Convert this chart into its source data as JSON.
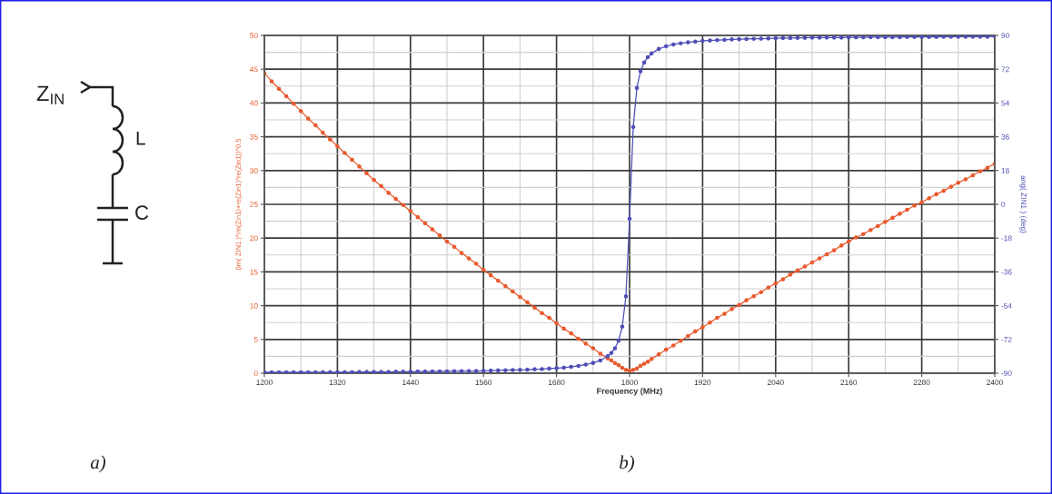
{
  "chart_data": {
    "type": "line",
    "xlabel": "Frequency (MHz)",
    "ylabel": "(im( ZIN1 )*im(Zin1)+re(Zin1)*re(Zin1))^0.5",
    "y2label": "ang( ZIN1 ) (deg)",
    "annotations": [
      "Z$_{IN}$",
      "L",
      "C",
      "a)",
      "b)"
    ],
    "x": [
      1200,
      1212,
      1224,
      1236,
      1248,
      1260,
      1272,
      1284,
      1296,
      1308,
      1320,
      1332,
      1344,
      1356,
      1368,
      1380,
      1392,
      1404,
      1416,
      1428,
      1440,
      1452,
      1464,
      1476,
      1488,
      1500,
      1512,
      1524,
      1536,
      1548,
      1560,
      1572,
      1584,
      1596,
      1608,
      1620,
      1632,
      1644,
      1656,
      1668,
      1680,
      1692,
      1704,
      1716,
      1728,
      1740,
      1752,
      1764,
      1770,
      1776,
      1782,
      1788,
      1794,
      1800,
      1806,
      1812,
      1818,
      1824,
      1830,
      1836,
      1848,
      1860,
      1872,
      1884,
      1896,
      1908,
      1920,
      1932,
      1944,
      1956,
      1968,
      1980,
      1992,
      2004,
      2016,
      2028,
      2040,
      2052,
      2064,
      2076,
      2088,
      2100,
      2112,
      2124,
      2136,
      2148,
      2160,
      2172,
      2184,
      2196,
      2208,
      2220,
      2232,
      2244,
      2256,
      2268,
      2280,
      2292,
      2304,
      2316,
      2328,
      2340,
      2352,
      2364,
      2376,
      2388,
      2400
    ],
    "series": [
      {
        "color": "#e85a2e",
        "values": [
          44.4,
          43.2,
          42.1,
          41,
          39.9,
          38.8,
          37.7,
          36.7,
          35.6,
          34.6,
          33.6,
          32.6,
          31.6,
          30.6,
          29.6,
          28.6,
          27.7,
          26.7,
          25.8,
          24.9,
          24,
          23.1,
          22.2,
          21.3,
          20.4,
          19.5,
          18.7,
          17.8,
          17,
          16.2,
          15.3,
          14.5,
          13.7,
          12.9,
          12.1,
          11.3,
          10.5,
          9.7,
          8.9,
          8.2,
          7.4,
          6.6,
          5.9,
          5.1,
          4.4,
          3.7,
          2.9,
          2.2,
          1.9,
          1.5,
          1.2,
          0.8,
          0.5,
          0.4,
          0.5,
          0.7,
          1.1,
          1.4,
          1.7,
          2.1,
          2.8,
          3.5,
          4.1,
          4.8,
          5.5,
          6.2,
          6.8,
          7.5,
          8.2,
          8.8,
          9.5,
          10.1,
          10.8,
          11.4,
          12,
          12.7,
          13.3,
          13.9,
          14.6,
          15.2,
          15.8,
          16.4,
          17,
          17.6,
          18.2,
          18.9,
          19.5,
          20.1,
          20.6,
          21.2,
          21.8,
          22.4,
          23,
          23.6,
          24.2,
          24.8,
          25.3,
          25.9,
          26.5,
          27,
          27.6,
          28.2,
          28.7,
          29.3,
          29.9,
          30.4,
          31
        ]
      },
      {
        "color": "#4f4fb8",
        "axis": "y2",
        "values": [
          -89.5,
          -89.5,
          -89.5,
          -89.5,
          -89.5,
          -89.5,
          -89.5,
          -89.5,
          -89.4,
          -89.4,
          -89.4,
          -89.4,
          -89.4,
          -89.3,
          -89.3,
          -89.3,
          -89.3,
          -89.3,
          -89.2,
          -89.2,
          -89.2,
          -89.1,
          -89.1,
          -89.1,
          -89,
          -89,
          -88.9,
          -88.9,
          -88.8,
          -88.8,
          -88.7,
          -88.6,
          -88.5,
          -88.4,
          -88.3,
          -88.2,
          -88.1,
          -87.9,
          -87.8,
          -87.5,
          -87.3,
          -87,
          -86.6,
          -86.1,
          -85.4,
          -84.5,
          -83.2,
          -80.9,
          -79.2,
          -76.7,
          -72.6,
          -65.2,
          -49,
          -7.7,
          41.2,
          62,
          70.9,
          75.6,
          78.4,
          80.4,
          82.8,
          84.2,
          85.2,
          85.8,
          86.3,
          86.7,
          87.1,
          87.3,
          87.5,
          87.7,
          87.9,
          88,
          88.1,
          88.2,
          88.3,
          88.4,
          88.5,
          88.6,
          88.6,
          88.7,
          88.7,
          88.8,
          88.8,
          88.9,
          88.9,
          88.9,
          89,
          89,
          89,
          89.1,
          89.1,
          89.1,
          89.1,
          89.1,
          89.2,
          89.2,
          89.2,
          89.2,
          89.2,
          89.3,
          89.3,
          89.3,
          89.3,
          89.3,
          89.3,
          89.3,
          89.4
        ]
      }
    ],
    "xlim": [
      1200,
      2400
    ],
    "xticks": [
      1200,
      {
        "value": 1260,
        "label": null
      },
      1320,
      {
        "value": 1380,
        "label": null
      },
      1440,
      {
        "value": 1500,
        "label": null
      },
      1560,
      {
        "value": 1620,
        "label": null
      },
      1680,
      {
        "value": 1740,
        "label": null
      },
      1800,
      {
        "value": 1860,
        "label": null
      },
      1920,
      {
        "value": 1980,
        "label": null
      },
      2040,
      {
        "value": 2100,
        "label": null
      },
      2160,
      {
        "value": 2220,
        "label": null
      },
      2280,
      {
        "value": 2340,
        "label": null
      },
      2400
    ],
    "ylim": [
      0,
      50
    ],
    "yticks": [
      0,
      {
        "value": 2.5,
        "label": null
      },
      5,
      {
        "value": 7.5,
        "label": null
      },
      10,
      {
        "value": 12.5,
        "label": null
      },
      15,
      {
        "value": 17.5,
        "label": null
      },
      20,
      {
        "value": 22.5,
        "label": null
      },
      25,
      {
        "value": 27.5,
        "label": null
      },
      30,
      {
        "value": 32.5,
        "label": null
      },
      35,
      {
        "value": 37.5,
        "label": null
      },
      40,
      {
        "value": 42.5,
        "label": null
      },
      45,
      {
        "value": 47.5,
        "label": null
      },
      50
    ],
    "y2lim": [
      -90,
      90
    ],
    "y2ticks": [
      -90,
      -72,
      -54,
      -36,
      -18,
      0,
      18,
      36,
      54,
      72,
      90
    ],
    "grid": true,
    "marker": "circle",
    "line_style": "solid"
  }
}
